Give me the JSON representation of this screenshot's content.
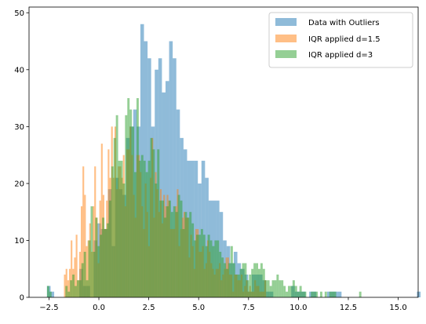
{
  "chart_data": {
    "type": "histogram",
    "title": "",
    "xlabel": "",
    "ylabel": "",
    "xlim": [
      -3.5,
      16.0
    ],
    "ylim": [
      0,
      51
    ],
    "x_ticks": [
      -2.5,
      0.0,
      2.5,
      5.0,
      7.5,
      10.0,
      12.5,
      15.0
    ],
    "x_tick_labels": [
      "−2.5",
      "0.0",
      "2.5",
      "5.0",
      "7.5",
      "10.0",
      "12.5",
      "15.0"
    ],
    "y_ticks": [
      0,
      10,
      20,
      30,
      40,
      50
    ],
    "y_tick_labels": [
      "0",
      "10",
      "20",
      "30",
      "40",
      "50"
    ],
    "grid": false,
    "legend_position": "top-right",
    "series": [
      {
        "name": "Data with Outliers",
        "color": "#1f77b4",
        "alpha": 0.5,
        "bin_start": -2.6,
        "bin_width": 0.18,
        "counts": [
          2,
          1,
          0,
          0,
          0,
          0,
          0,
          0,
          0,
          5,
          2,
          2,
          0,
          10,
          13,
          12,
          12,
          19,
          9,
          21,
          19,
          18,
          28,
          30,
          33,
          30,
          48,
          45,
          42,
          30,
          40,
          42,
          36,
          38,
          45,
          42,
          33,
          28,
          26,
          24,
          24,
          24,
          20,
          24,
          21,
          17,
          17,
          17,
          15,
          10,
          9,
          6,
          8,
          6,
          5,
          4,
          1,
          4,
          4,
          4,
          3,
          1,
          1,
          0,
          0,
          0,
          0,
          0,
          2,
          1,
          1,
          1,
          0,
          1,
          1,
          0,
          0,
          0,
          1,
          1,
          1,
          1,
          0,
          0,
          0,
          0,
          0,
          0,
          0,
          0,
          0,
          0,
          0,
          0,
          0,
          0,
          0,
          0,
          0,
          0,
          0,
          0,
          0,
          1
        ]
      },
      {
        "name": "IQR applied d=1.5",
        "color": "#ff7f0e",
        "alpha": 0.5,
        "bin_start": -1.75,
        "bin_width": 0.0844,
        "counts": [
          4,
          5,
          3,
          5,
          10,
          5,
          7,
          11,
          3,
          8,
          16,
          23,
          18,
          9,
          10,
          13,
          8,
          16,
          23,
          14,
          6,
          17,
          27,
          18,
          12,
          17,
          26,
          21,
          30,
          21,
          30,
          19,
          23,
          23,
          21,
          25,
          16,
          26,
          26,
          30,
          25,
          18,
          14,
          25,
          25,
          22,
          16,
          12,
          20,
          15,
          9,
          21,
          28,
          14,
          22,
          19,
          15,
          19,
          13,
          18,
          16,
          18,
          17,
          12,
          12,
          12,
          16,
          19,
          9,
          12,
          14,
          15,
          14,
          14,
          7,
          11,
          9,
          5,
          12,
          12,
          8,
          8,
          9,
          5,
          6,
          10,
          8,
          6,
          5,
          4,
          5,
          5,
          6,
          3,
          4,
          5,
          7,
          7,
          4,
          4,
          1,
          4,
          4,
          3,
          3,
          4,
          1,
          2,
          3,
          1,
          2,
          1,
          1,
          3,
          2,
          2,
          1,
          1,
          1,
          3
        ]
      },
      {
        "name": "IQR applied d=3",
        "color": "#2ca02c",
        "alpha": 0.5,
        "bin_start": -2.6,
        "bin_width": 0.115,
        "counts": [
          2,
          1,
          0,
          0,
          0,
          0,
          0,
          0,
          2,
          1,
          3,
          4,
          2,
          3,
          3,
          6,
          8,
          3,
          10,
          16,
          8,
          14,
          9,
          11,
          14,
          12,
          13,
          17,
          23,
          28,
          32,
          24,
          24,
          20,
          32,
          35,
          33,
          30,
          22,
          35,
          24,
          25,
          24,
          22,
          24,
          28,
          26,
          20,
          26,
          17,
          17,
          14,
          16,
          17,
          15,
          16,
          15,
          18,
          17,
          12,
          15,
          14,
          15,
          13,
          10,
          11,
          11,
          12,
          11,
          9,
          11,
          10,
          9,
          10,
          10,
          8,
          7,
          6,
          5,
          6,
          9,
          6,
          4,
          4,
          5,
          6,
          6,
          3,
          4,
          5,
          6,
          6,
          5,
          6,
          5,
          3,
          3,
          2,
          3,
          3,
          4,
          3,
          3,
          2,
          1,
          2,
          2,
          3,
          2,
          1,
          2,
          1,
          1,
          0,
          0,
          1,
          1,
          1,
          0,
          1,
          0,
          1,
          0,
          1,
          1,
          1,
          0,
          0,
          0,
          0,
          0,
          0,
          0,
          0,
          0,
          0,
          1
        ]
      }
    ]
  }
}
